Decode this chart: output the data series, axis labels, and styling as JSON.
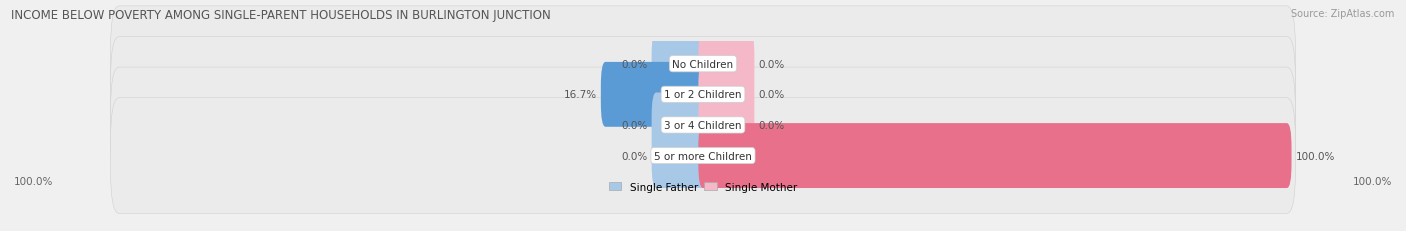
{
  "title": "INCOME BELOW POVERTY AMONG SINGLE-PARENT HOUSEHOLDS IN BURLINGTON JUNCTION",
  "source": "Source: ZipAtlas.com",
  "categories": [
    "No Children",
    "1 or 2 Children",
    "3 or 4 Children",
    "5 or more Children"
  ],
  "single_father": [
    0.0,
    16.7,
    0.0,
    0.0
  ],
  "single_mother": [
    0.0,
    0.0,
    0.0,
    100.0
  ],
  "father_color_light": "#a8c8e8",
  "father_color_dark": "#5b9bd5",
  "mother_color_light": "#f4b8c8",
  "mother_color_dark": "#e8708a",
  "row_bg_color": "#ebebeb",
  "row_border_color": "#d0d0d0",
  "fig_bg_color": "#f0f0f0",
  "title_fontsize": 8.5,
  "source_fontsize": 7.0,
  "label_fontsize": 7.5,
  "category_fontsize": 7.5,
  "axis_label_left": "100.0%",
  "axis_label_right": "100.0%",
  "max_val": 100.0,
  "stub_val": 8.0
}
